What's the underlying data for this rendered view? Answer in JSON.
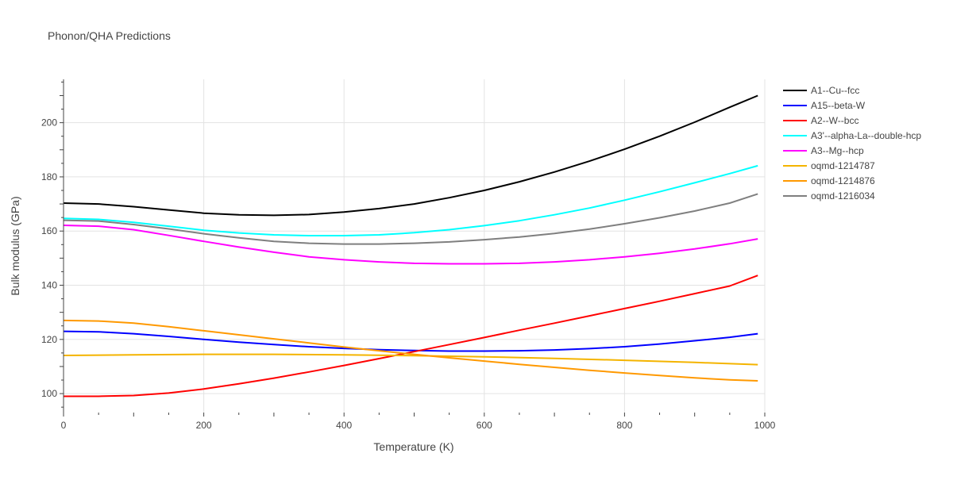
{
  "chart_data": {
    "type": "line",
    "title": "Phonon/QHA Predictions",
    "xlabel": "Temperature (K)",
    "ylabel": "Bulk modulus (GPa)",
    "xlim": [
      0,
      1000
    ],
    "ylim": [
      93,
      216
    ],
    "xticks": [
      0,
      200,
      400,
      600,
      800,
      1000
    ],
    "yticks": [
      100,
      120,
      140,
      160,
      180,
      200
    ],
    "grid": true,
    "legend_position": "right",
    "series": [
      {
        "name": "A1--Cu--fcc",
        "color": "#000000",
        "x": [
          0,
          50,
          100,
          150,
          200,
          250,
          300,
          350,
          400,
          450,
          500,
          550,
          600,
          650,
          700,
          750,
          800,
          850,
          900,
          950,
          990
        ],
        "y": [
          170.3,
          170.0,
          169.0,
          167.8,
          166.6,
          166.0,
          165.8,
          166.1,
          167.0,
          168.3,
          170.0,
          172.3,
          175.0,
          178.2,
          181.8,
          185.8,
          190.2,
          195.0,
          200.2,
          205.7,
          210.0
        ]
      },
      {
        "name": "A15--beta-W",
        "color": "#0000ff",
        "x": [
          0,
          50,
          100,
          150,
          200,
          250,
          300,
          350,
          400,
          450,
          500,
          550,
          600,
          650,
          700,
          750,
          800,
          850,
          900,
          950,
          990
        ],
        "y": [
          123.0,
          122.8,
          122.1,
          121.1,
          120.0,
          119.0,
          118.1,
          117.3,
          116.7,
          116.2,
          115.9,
          115.7,
          115.7,
          115.8,
          116.1,
          116.6,
          117.3,
          118.3,
          119.5,
          120.8,
          122.1
        ]
      },
      {
        "name": "A2--W--bcc",
        "color": "#ff0000",
        "x": [
          0,
          50,
          100,
          150,
          200,
          250,
          300,
          350,
          400,
          450,
          500,
          550,
          600,
          650,
          700,
          750,
          800,
          850,
          900,
          950,
          990
        ],
        "y": [
          99.0,
          99.0,
          99.3,
          100.2,
          101.7,
          103.6,
          105.7,
          108.0,
          110.4,
          112.9,
          115.5,
          118.1,
          120.7,
          123.4,
          126.0,
          128.7,
          131.4,
          134.1,
          136.9,
          139.7,
          143.6
        ]
      },
      {
        "name": "A3'--alpha-La--double-hcp",
        "color": "#00ffff",
        "x": [
          0,
          50,
          100,
          150,
          200,
          250,
          300,
          350,
          400,
          450,
          500,
          550,
          600,
          650,
          700,
          750,
          800,
          850,
          900,
          950,
          990
        ],
        "y": [
          164.7,
          164.3,
          163.2,
          161.8,
          160.3,
          159.3,
          158.6,
          158.3,
          158.3,
          158.6,
          159.4,
          160.5,
          162.0,
          163.8,
          166.0,
          168.5,
          171.4,
          174.5,
          177.8,
          181.2,
          184.1
        ]
      },
      {
        "name": "A3--Mg--hcp",
        "color": "#ff00ff",
        "x": [
          0,
          50,
          100,
          150,
          200,
          250,
          300,
          350,
          400,
          450,
          500,
          550,
          600,
          650,
          700,
          750,
          800,
          850,
          900,
          950,
          990
        ],
        "y": [
          162.1,
          161.8,
          160.5,
          158.4,
          156.2,
          154.1,
          152.2,
          150.5,
          149.4,
          148.6,
          148.1,
          147.9,
          147.9,
          148.1,
          148.6,
          149.4,
          150.5,
          151.8,
          153.4,
          155.3,
          157.1
        ]
      },
      {
        "name": "oqmd-1214787",
        "color": "#f4b400",
        "x": [
          0,
          100,
          200,
          300,
          400,
          500,
          600,
          700,
          800,
          900,
          990
        ],
        "y": [
          114.1,
          114.3,
          114.5,
          114.5,
          114.3,
          114.0,
          113.6,
          113.0,
          112.3,
          111.5,
          110.7
        ]
      },
      {
        "name": "oqmd-1214876",
        "color": "#ff9900",
        "x": [
          0,
          50,
          100,
          150,
          200,
          250,
          300,
          350,
          400,
          450,
          500,
          550,
          600,
          650,
          700,
          750,
          800,
          850,
          900,
          950,
          990
        ],
        "y": [
          127.0,
          126.8,
          126.0,
          124.7,
          123.2,
          121.7,
          120.2,
          118.7,
          117.2,
          115.8,
          114.5,
          113.2,
          112.0,
          110.8,
          109.7,
          108.6,
          107.6,
          106.7,
          105.8,
          105.1,
          104.7
        ]
      },
      {
        "name": "oqmd-1216034",
        "color": "#7f7f7f",
        "x": [
          0,
          50,
          100,
          150,
          200,
          250,
          300,
          350,
          400,
          450,
          500,
          550,
          600,
          650,
          700,
          750,
          800,
          850,
          900,
          950,
          990
        ],
        "y": [
          164.0,
          163.7,
          162.4,
          160.8,
          159.0,
          157.5,
          156.2,
          155.5,
          155.2,
          155.2,
          155.5,
          156.0,
          156.8,
          157.8,
          159.1,
          160.7,
          162.7,
          164.9,
          167.4,
          170.3,
          173.7
        ]
      }
    ]
  }
}
